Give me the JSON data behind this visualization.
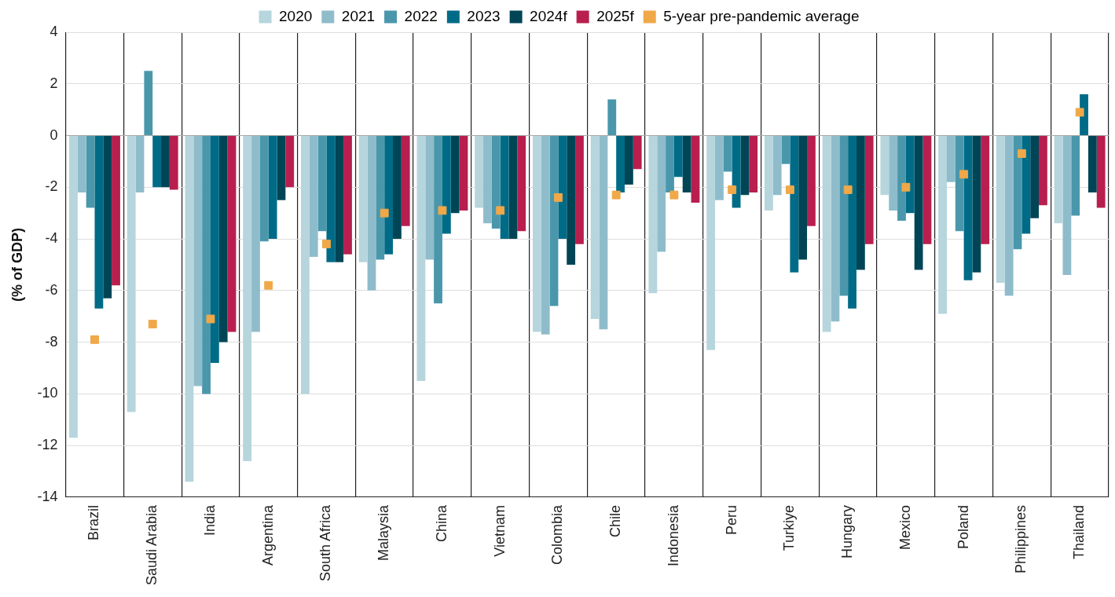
{
  "chart_data": {
    "type": "bar",
    "ylabel": "(% of GDP)",
    "categories": [
      "Brazil",
      "Saudi Arabia",
      "India",
      "Argentina",
      "South Africa",
      "Malaysia",
      "China",
      "Vietnam",
      "Colombia",
      "Chile",
      "Indonesia",
      "Peru",
      "Turkiye",
      "Hungary",
      "Mexico",
      "Poland",
      "Philippines",
      "Thailand"
    ],
    "series": [
      {
        "name": "2020",
        "color": "#b6d5dd",
        "values": [
          -11.7,
          -10.7,
          -13.4,
          -12.6,
          -10.0,
          -4.9,
          -9.5,
          -2.8,
          -7.6,
          -7.1,
          -6.1,
          -8.3,
          -2.9,
          -7.6,
          -2.3,
          -6.9,
          -5.7,
          -3.4
        ]
      },
      {
        "name": "2021",
        "color": "#8fbccb",
        "values": [
          -2.2,
          -2.2,
          -9.7,
          -7.6,
          -4.7,
          -6.0,
          -4.8,
          -3.4,
          -7.7,
          -7.5,
          -4.5,
          -2.5,
          -2.3,
          -7.2,
          -2.9,
          -1.8,
          -6.2,
          -5.4
        ]
      },
      {
        "name": "2022",
        "color": "#4a97ac",
        "values": [
          -2.8,
          2.5,
          -10.0,
          -4.1,
          -3.7,
          -4.8,
          -6.5,
          -3.6,
          -6.6,
          1.4,
          -2.2,
          -1.4,
          -1.1,
          -6.2,
          -3.3,
          -3.7,
          -4.4,
          -3.1
        ]
      },
      {
        "name": "2023",
        "color": "#006b87",
        "values": [
          -6.7,
          -2.0,
          -8.8,
          -4.0,
          -4.9,
          -4.6,
          -3.8,
          -4.0,
          -4.0,
          -2.2,
          -1.6,
          -2.8,
          -5.3,
          -6.7,
          -3.0,
          -5.6,
          -3.8,
          1.6
        ]
      },
      {
        "name": "2024f",
        "color": "#004556",
        "values": [
          -6.3,
          -2.0,
          -8.0,
          -2.5,
          -4.9,
          -4.0,
          -3.0,
          -4.0,
          -5.0,
          -1.9,
          -2.2,
          -2.3,
          -4.8,
          -5.2,
          -5.2,
          -5.3,
          -3.2,
          -2.2
        ]
      },
      {
        "name": "2025f",
        "color": "#b81f4f",
        "values": [
          -5.8,
          -2.1,
          -7.6,
          -2.0,
          -4.6,
          -3.5,
          -2.9,
          -3.7,
          -4.2,
          -1.3,
          -2.6,
          -2.2,
          -3.5,
          -4.2,
          -4.2,
          -4.2,
          -2.7,
          -2.8
        ]
      },
      {
        "name": "5-year pre-pandemic average",
        "type": "scatter",
        "marker": "square",
        "color": "#f0a848",
        "x": [
          "Brazil",
          "Saudi Arabia",
          "India",
          "Argentina",
          "South Africa",
          "Malaysia",
          "China",
          "Vietnam",
          "Colombia",
          "Chile",
          "Indonesia",
          "Peru",
          "Turkiye",
          "Hungary",
          "Mexico",
          "Poland",
          "Philippines",
          "Thailand"
        ],
        "values": [
          -7.9,
          -7.3,
          -7.1,
          -5.8,
          -4.2,
          -3.0,
          -2.9,
          -2.9,
          -2.4,
          -2.3,
          -2.3,
          -2.1,
          -2.1,
          -2.1,
          -2.0,
          -1.5,
          -0.7,
          0.9
        ]
      }
    ],
    "ylim": [
      -14,
      4
    ],
    "yticks": [
      -14,
      -12,
      -10,
      -8,
      -6,
      -4,
      -2,
      0,
      2,
      4
    ],
    "grid": true,
    "legend": "top"
  }
}
